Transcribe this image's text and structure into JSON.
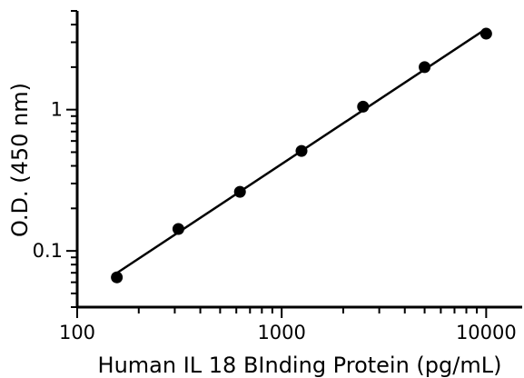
{
  "chart_data": {
    "type": "scatter",
    "title": "",
    "xlabel": "Human IL 18 BInding Protein (pg/mL)",
    "ylabel": "O.D. (450 nm)",
    "xscale": "log",
    "yscale": "log",
    "xlim": [
      100,
      15000
    ],
    "ylim": [
      0.04,
      5
    ],
    "xticks": [
      {
        "value": 100,
        "label": "100"
      },
      {
        "value": 1000,
        "label": "1000"
      },
      {
        "value": 10000,
        "label": "10000"
      }
    ],
    "yticks": [
      {
        "value": 0.1,
        "label": "0.1"
      },
      {
        "value": 1,
        "label": "1"
      }
    ],
    "series": [
      {
        "x": [
          156.25,
          312.5,
          625,
          1250,
          2500,
          5000,
          10000
        ],
        "y": [
          0.065,
          0.143,
          0.262,
          0.51,
          1.05,
          2.0,
          3.45
        ]
      }
    ],
    "fit_line": true,
    "grid": false,
    "legend": "none",
    "colors": {
      "points": "#000000",
      "line": "#000000",
      "axes": "#000000"
    }
  }
}
